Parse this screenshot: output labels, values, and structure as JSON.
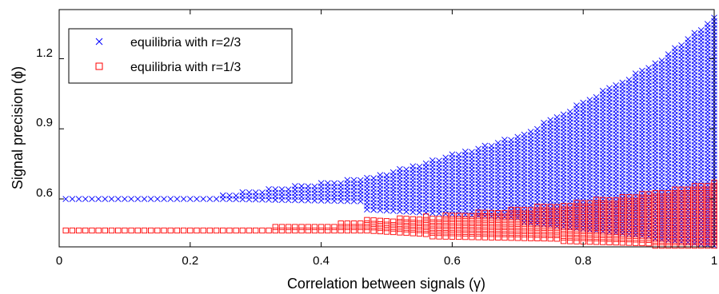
{
  "chart_data": {
    "type": "scatter",
    "xlabel": "Correlation between signals (γ)",
    "ylabel": "Signal precision (ϕ)",
    "xlim": [
      0,
      1
    ],
    "ylim": [
      0.395,
      1.41
    ],
    "x_ticks": [
      0,
      0.2,
      0.4,
      0.6,
      0.8,
      1
    ],
    "y_ticks": [
      0.6,
      0.9,
      1.2
    ],
    "x_tick_labels": [
      "0",
      "0.2",
      "0.4",
      "0.6",
      "0.8",
      "1"
    ],
    "y_tick_labels": [
      "0.6",
      "0.9",
      "1.2"
    ],
    "grid": false,
    "legend_position": "top-left",
    "x_step": 0.01,
    "y_step": 0.015,
    "series": [
      {
        "name": "equilibria with r=2/3",
        "marker": "x",
        "color": "#0000ff",
        "bands": [
          {
            "x": [
              0.01,
              0.24
            ],
            "y_low": [
              0.6,
              0.6
            ],
            "y_high": [
              0.6,
              0.6
            ]
          },
          {
            "x": [
              0.25,
              0.46
            ],
            "y_low": [
              0.6,
              0.59
            ],
            "y_high": [
              0.62,
              0.69
            ]
          },
          {
            "x": [
              0.47,
              0.7
            ],
            "y_low": [
              0.555,
              0.52
            ],
            "y_high": [
              0.69,
              0.87
            ]
          },
          {
            "x": [
              0.71,
              0.9
            ],
            "y_low": [
              0.5,
              0.44
            ],
            "y_high": [
              0.88,
              1.17
            ]
          },
          {
            "x": [
              0.91,
              1.0
            ],
            "y_low": [
              0.43,
              0.4
            ],
            "y_high": [
              1.18,
              1.38
            ]
          }
        ]
      },
      {
        "name": "equilibria with r=1/3",
        "marker": "square",
        "color": "#ff0000",
        "bands": [
          {
            "x": [
              0.01,
              0.32
            ],
            "y_low": [
              0.465,
              0.465
            ],
            "y_high": [
              0.465,
              0.465
            ]
          },
          {
            "x": [
              0.33,
              0.46
            ],
            "y_low": [
              0.465,
              0.465
            ],
            "y_high": [
              0.48,
              0.5
            ]
          },
          {
            "x": [
              0.47,
              0.56
            ],
            "y_low": [
              0.465,
              0.45
            ],
            "y_high": [
              0.51,
              0.525
            ]
          },
          {
            "x": [
              0.57,
              0.76
            ],
            "y_low": [
              0.44,
              0.43
            ],
            "y_high": [
              0.525,
              0.575
            ]
          },
          {
            "x": [
              0.77,
              0.9
            ],
            "y_low": [
              0.42,
              0.41
            ],
            "y_high": [
              0.58,
              0.625
            ]
          },
          {
            "x": [
              0.91,
              1.0
            ],
            "y_low": [
              0.4,
              0.4
            ],
            "y_high": [
              0.63,
              0.67
            ]
          }
        ]
      }
    ]
  }
}
